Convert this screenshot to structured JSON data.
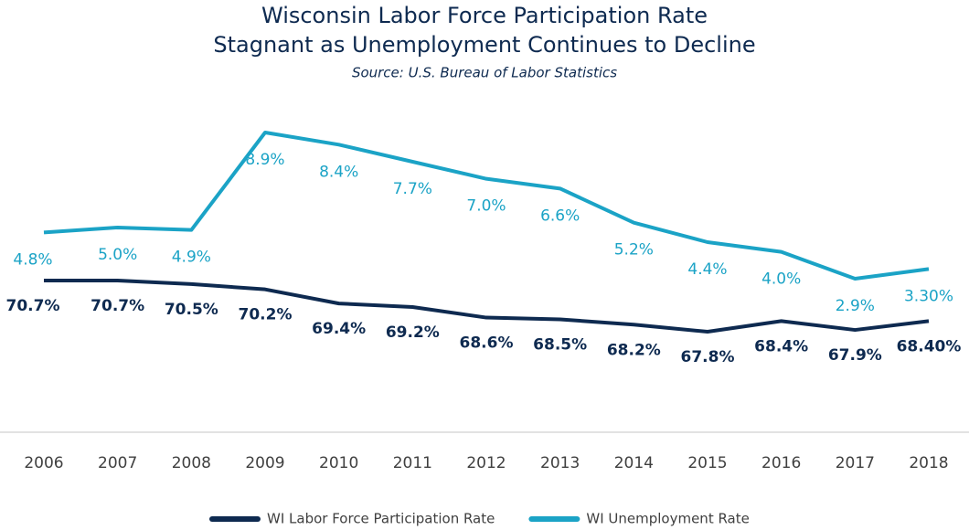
{
  "chart_data": {
    "type": "line",
    "title": "Wisconsin Labor Force Participation Rate",
    "subtitle": "Stagnant as Unemployment Continues to Decline",
    "source": "Source: U.S. Bureau of Labor Statistics",
    "categories": [
      "2006",
      "2007",
      "2008",
      "2009",
      "2010",
      "2011",
      "2012",
      "2013",
      "2014",
      "2015",
      "2016",
      "2017",
      "2018"
    ],
    "series": [
      {
        "name": "WI Labor Force Participation Rate",
        "color": "#0e2a50",
        "values": [
          70.7,
          70.7,
          70.5,
          70.2,
          69.4,
          69.2,
          68.6,
          68.5,
          68.2,
          67.8,
          68.4,
          67.9,
          68.4
        ],
        "value_labels": [
          "70.7%",
          "70.7%",
          "70.5%",
          "70.2%",
          "69.4%",
          "69.2%",
          "68.6%",
          "68.5%",
          "68.2%",
          "67.8%",
          "68.4%",
          "67.9%",
          "68.40%"
        ]
      },
      {
        "name": "WI Unemployment Rate",
        "color": "#1ba3c6",
        "values": [
          4.8,
          5.0,
          4.9,
          8.9,
          8.4,
          7.7,
          7.0,
          6.6,
          5.2,
          4.4,
          4.0,
          2.9,
          3.3
        ],
        "value_labels": [
          "4.8%",
          "5.0%",
          "4.9%",
          "8.9%",
          "8.4%",
          "7.7%",
          "7.0%",
          "6.6%",
          "5.2%",
          "4.4%",
          "4.0%",
          "2.9%",
          "3.30%"
        ]
      }
    ],
    "legend": "bottom"
  }
}
